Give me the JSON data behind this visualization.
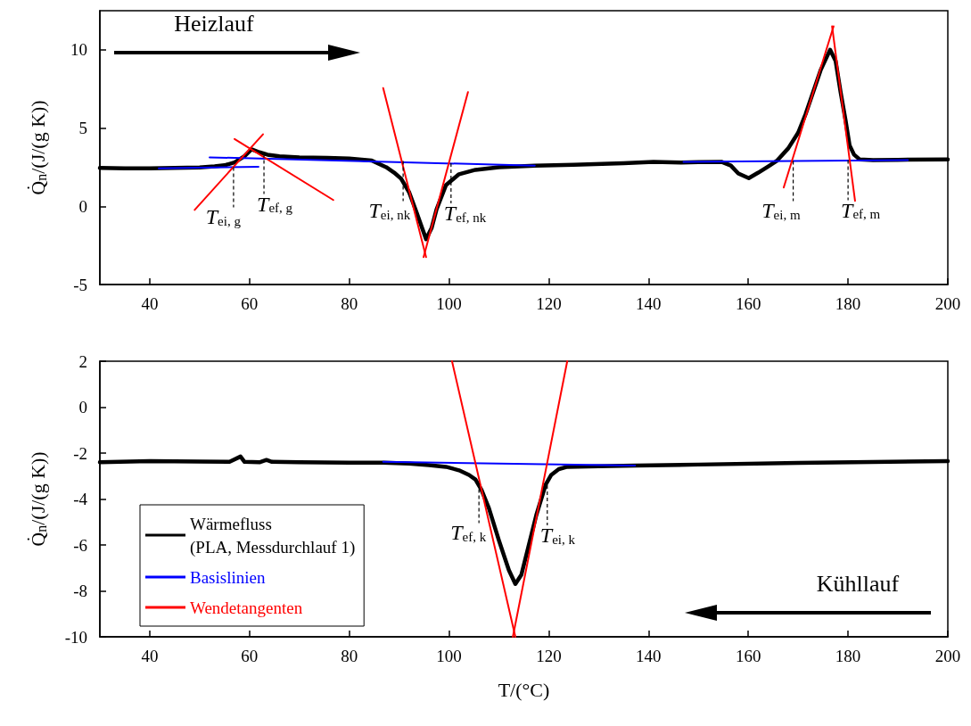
{
  "chart_data": [
    {
      "type": "line",
      "ylabel": "Q̇$_{n}$/(J/(g K))",
      "xlim": [
        30,
        200
      ],
      "xticks": [
        40,
        60,
        80,
        100,
        120,
        140,
        160,
        180,
        200
      ],
      "ylim": [
        -5,
        12.5
      ],
      "yticks": [
        -5,
        0,
        5,
        10
      ],
      "annotations": [
        "Heizlauf",
        {
          "text": "T$_{ei, g}$",
          "x": 56.8,
          "y": 2.5
        },
        {
          "text": "T$_{ef, g}$",
          "x": 62.9,
          "y": 3.35
        },
        {
          "text": "T$_{ei, nk}$",
          "x": 90.8,
          "y": 2.9
        },
        {
          "text": "T$_{ef, nk}$",
          "x": 100.4,
          "y": 2.75
        },
        {
          "text": "T$_{ei, m}$",
          "x": 169,
          "y": 2.9
        },
        {
          "text": "T$_{ef, m}$",
          "x": 180,
          "y": 2.95
        }
      ],
      "series": [
        {
          "color": "#000000",
          "x": [
            30,
            35,
            40,
            45,
            50,
            53,
            55,
            57,
            59,
            60.4,
            62,
            63.6,
            66,
            70,
            75.6,
            80,
            84.5,
            87.4,
            89,
            90.4,
            92,
            93.5,
            95.4,
            96.5,
            97.5,
            99.4,
            102,
            105.3,
            110,
            117.2,
            125,
            135,
            141,
            146.5,
            150,
            154.6,
            156.5,
            158,
            160.1,
            162,
            164,
            165.7,
            168,
            170,
            171.5,
            173,
            174.5,
            176.4,
            177.5,
            178.5,
            179.5,
            180.3,
            181.2,
            182.3,
            185,
            190,
            200
          ],
          "values": [
            2.45,
            2.42,
            2.43,
            2.45,
            2.48,
            2.55,
            2.62,
            2.8,
            3.2,
            3.64,
            3.45,
            3.3,
            3.2,
            3.12,
            3.1,
            3.05,
            2.92,
            2.5,
            2.15,
            1.76,
            0.9,
            -0.4,
            -2.1,
            -1.4,
            -0.2,
            1.36,
            2.05,
            2.33,
            2.5,
            2.6,
            2.65,
            2.75,
            2.84,
            2.8,
            2.82,
            2.84,
            2.6,
            2.1,
            1.8,
            2.15,
            2.55,
            2.9,
            3.7,
            4.7,
            5.9,
            7.3,
            8.7,
            10.0,
            9.3,
            7.3,
            5.5,
            3.9,
            3.3,
            3.0,
            2.95,
            2.97,
            3.0
          ]
        },
        {
          "color": "#0000ff",
          "x": [
            41.8,
            61.8
          ],
          "values": [
            2.43,
            2.52
          ]
        },
        {
          "color": "#0000ff",
          "x": [
            52,
            117.2
          ],
          "values": [
            3.13,
            2.6
          ]
        },
        {
          "color": "#0000ff",
          "x": [
            147,
            192
          ],
          "values": [
            2.84,
            2.95
          ]
        },
        {
          "color": "#ff0000",
          "x": [
            49,
            62.7
          ],
          "values": [
            -0.23,
            4.6
          ]
        },
        {
          "color": "#ff0000",
          "x": [
            57,
            76.8
          ],
          "values": [
            4.3,
            0.4
          ]
        },
        {
          "color": "#ff0000",
          "x": [
            86.8,
            95.4
          ],
          "values": [
            7.55,
            -3.25
          ]
        },
        {
          "color": "#ff0000",
          "x": [
            94.9,
            103.8
          ],
          "values": [
            -3.25,
            7.3
          ]
        },
        {
          "color": "#ff0000",
          "x": [
            167.1,
            177.1
          ],
          "values": [
            1.2,
            11.5
          ]
        },
        {
          "color": "#ff0000",
          "x": [
            176.8,
            181.4
          ],
          "values": [
            11.5,
            0.35
          ]
        }
      ]
    },
    {
      "type": "line",
      "xlabel": "T/(°C)",
      "ylabel": "Q̇$_{n}$/(J/(g K))",
      "xlim": [
        30,
        200
      ],
      "xticks": [
        40,
        60,
        80,
        100,
        120,
        140,
        160,
        180,
        200
      ],
      "ylim": [
        -10,
        2
      ],
      "yticks": [
        -10,
        -8,
        -6,
        -4,
        -2,
        0,
        2
      ],
      "legend": "bottom left",
      "annotations": [
        "Kühllauf",
        {
          "text": "T$_{ef, k}$",
          "x": 106,
          "y": -3.3
        },
        {
          "text": "T$_{ei, k}$",
          "x": 119.7,
          "y": -3.4
        }
      ],
      "series": [
        {
          "name": "Wärmefluss\n(PLA, Messdurchlauf 1)",
          "color": "#000000",
          "x": [
            30,
            40,
            50,
            56,
            58.2,
            59,
            62,
            63.4,
            64.5,
            70,
            80,
            86.8,
            92,
            96,
            99.4,
            102,
            104,
            105.3,
            106.5,
            108,
            110,
            112,
            113.3,
            114.5,
            116,
            117.5,
            119.4,
            120.5,
            122,
            123.7,
            130,
            137.3,
            150,
            170,
            200
          ],
          "values": [
            -2.4,
            -2.35,
            -2.37,
            -2.38,
            -2.15,
            -2.38,
            -2.4,
            -2.3,
            -2.38,
            -2.4,
            -2.42,
            -2.42,
            -2.46,
            -2.52,
            -2.6,
            -2.75,
            -2.95,
            -3.15,
            -3.6,
            -4.4,
            -5.8,
            -7.1,
            -7.7,
            -7.3,
            -6.0,
            -4.7,
            -3.36,
            -2.95,
            -2.7,
            -2.6,
            -2.57,
            -2.54,
            -2.5,
            -2.43,
            -2.35
          ]
        },
        {
          "name": "Basislinien",
          "color": "#0000ff",
          "x": [
            86.8,
            137.3
          ],
          "values": [
            -2.38,
            -2.54
          ]
        },
        {
          "name": "Wendetangenten",
          "color": "#ff0000",
          "x": [
            100.6,
            113.3
          ],
          "values": [
            2.0,
            -10
          ]
        },
        {
          "color": "#ff0000",
          "x": [
            112.8,
            123.7
          ],
          "values": [
            -10,
            2.0
          ]
        }
      ]
    }
  ]
}
